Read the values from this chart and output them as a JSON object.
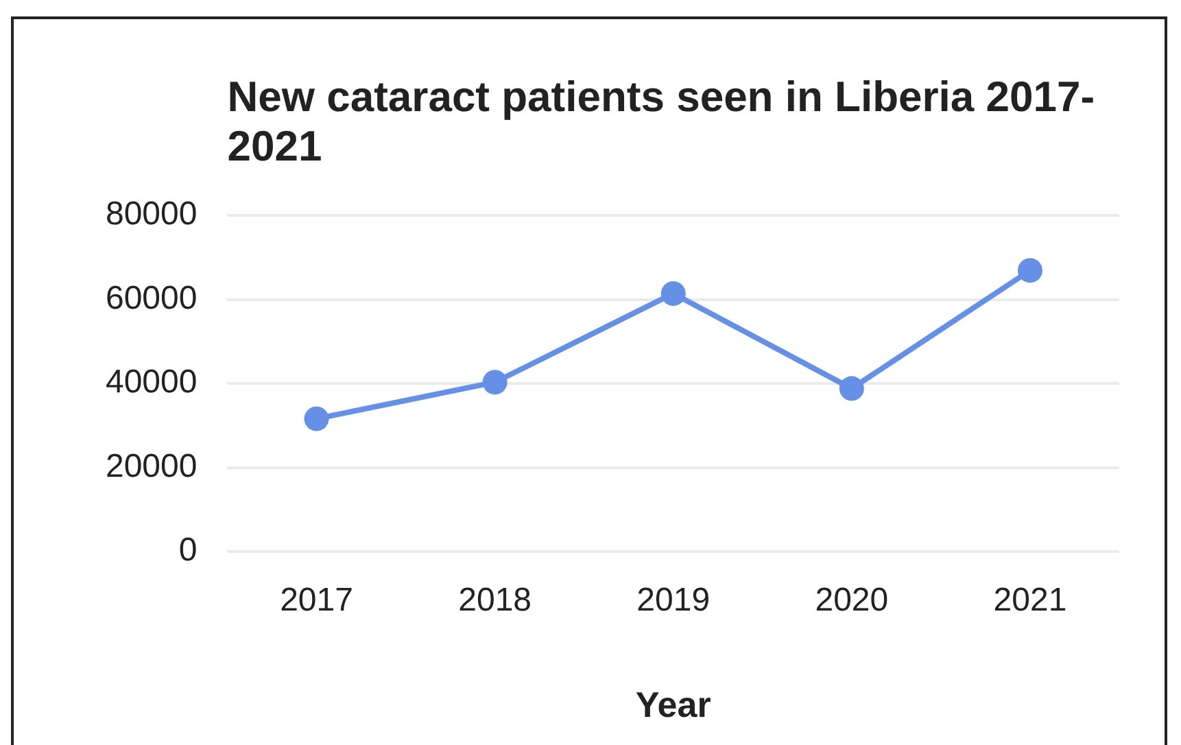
{
  "chart_data": {
    "type": "line",
    "title": "New cataract patients seen in Liberia 2017- 2021",
    "xlabel": "Year",
    "categories": [
      "2017",
      "2018",
      "2019",
      "2020",
      "2021"
    ],
    "series": [
      {
        "color": "#6690e6",
        "values": [
          31600,
          40300,
          61400,
          38800,
          66900
        ]
      }
    ],
    "ylim": [
      0,
      80000
    ],
    "yticks": [
      0,
      20000,
      40000,
      60000,
      80000
    ],
    "grid": "y",
    "legend": false,
    "marker": "circle",
    "line_style": "solid"
  }
}
